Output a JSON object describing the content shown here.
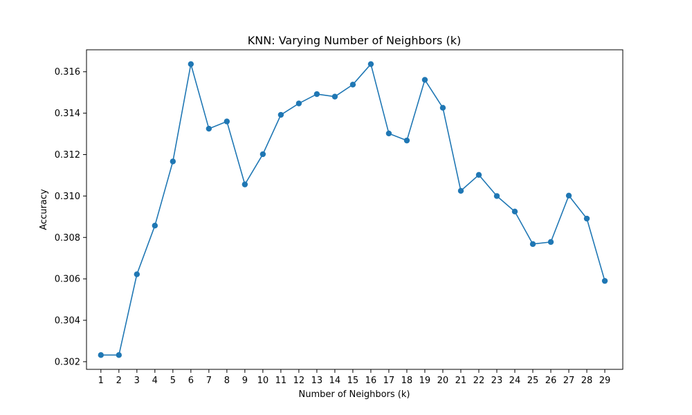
{
  "chart_data": {
    "type": "line",
    "title": "KNN: Varying Number of Neighbors (k)",
    "xlabel": "Number of Neighbors (k)",
    "ylabel": "Accuracy",
    "x": [
      1,
      2,
      3,
      4,
      5,
      6,
      7,
      8,
      9,
      10,
      11,
      12,
      13,
      14,
      15,
      16,
      17,
      18,
      19,
      20,
      21,
      22,
      23,
      24,
      25,
      26,
      27,
      28,
      29
    ],
    "series": [
      {
        "values": [
          0.30232,
          0.30232,
          0.30622,
          0.30857,
          0.31167,
          0.31637,
          0.31325,
          0.3136,
          0.31056,
          0.31202,
          0.31392,
          0.31447,
          0.31492,
          0.3148,
          0.31538,
          0.31637,
          0.31302,
          0.31268,
          0.31561,
          0.31426,
          0.31025,
          0.31102,
          0.31,
          0.30925,
          0.30768,
          0.30778,
          0.31002,
          0.30891,
          0.3059
        ],
        "marker": "circle"
      }
    ],
    "xticks": [
      "1",
      "2",
      "3",
      "4",
      "5",
      "6",
      "7",
      "8",
      "9",
      "10",
      "11",
      "12",
      "13",
      "14",
      "15",
      "16",
      "17",
      "18",
      "19",
      "20",
      "21",
      "22",
      "23",
      "24",
      "25",
      "26",
      "27",
      "28",
      "29"
    ],
    "yticks": [
      "0.302",
      "0.304",
      "0.306",
      "0.308",
      "0.310",
      "0.312",
      "0.314",
      "0.316"
    ],
    "ytick_values": [
      0.302,
      0.304,
      0.306,
      0.308,
      0.31,
      0.312,
      0.314,
      0.316
    ],
    "xlim": [
      0.2,
      30.0
    ],
    "ylim": [
      0.30163,
      0.31706
    ],
    "grid": false,
    "colors": {
      "line": "#1f77b4",
      "axis": "#000000",
      "background": "#ffffff"
    }
  }
}
